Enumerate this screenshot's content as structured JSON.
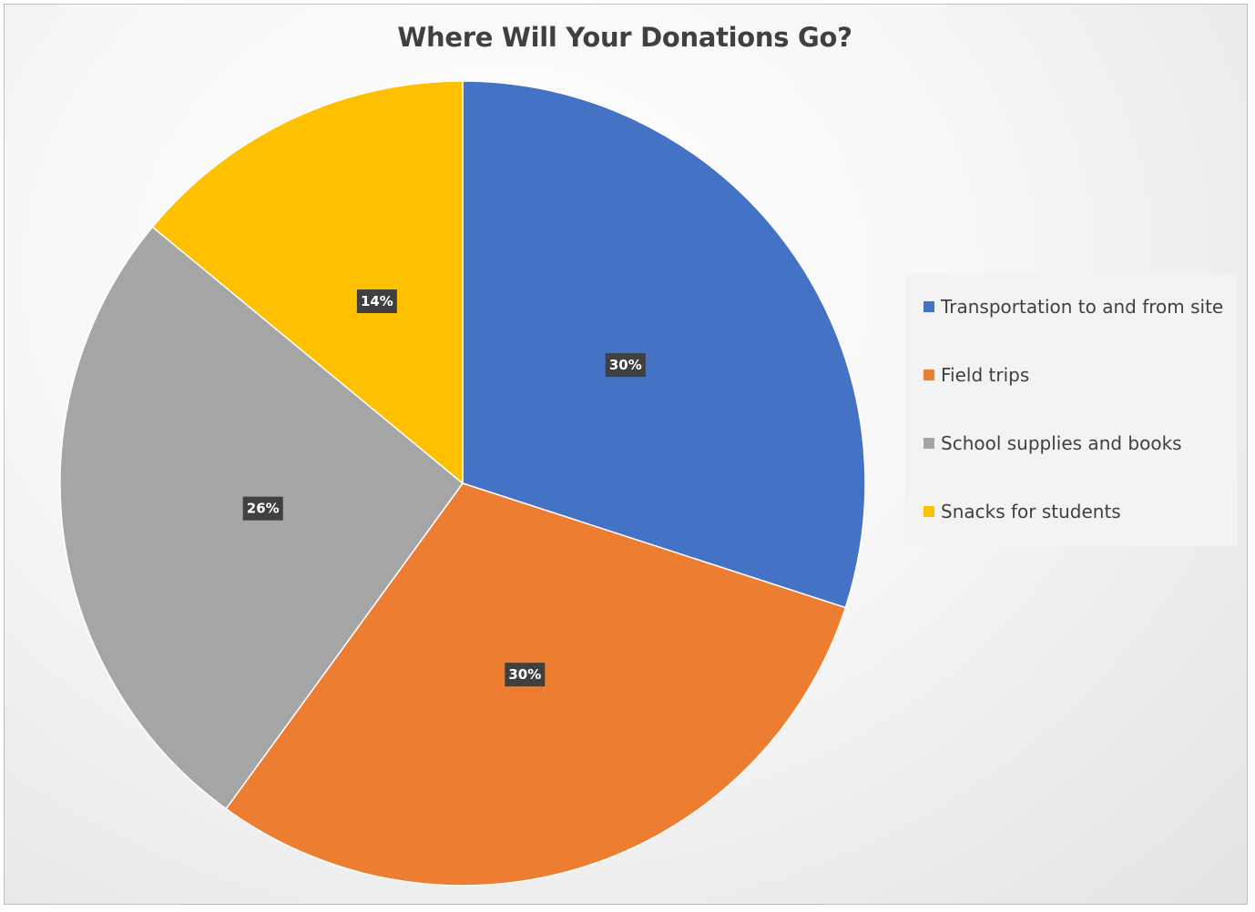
{
  "chart_data": {
    "type": "pie",
    "title": "Where Will Your Donations Go?",
    "categories": [
      "Transportation to and from site",
      "Field trips",
      "School supplies and books",
      "Snacks for students"
    ],
    "values": [
      30,
      30,
      26,
      14
    ],
    "labels": [
      "30%",
      "30%",
      "26%",
      "14%"
    ],
    "colors": [
      "#4472c4",
      "#ed7d31",
      "#a5a5a5",
      "#ffc000"
    ],
    "legend_position": "right",
    "start_angle": "12 o'clock",
    "direction": "clockwise"
  }
}
